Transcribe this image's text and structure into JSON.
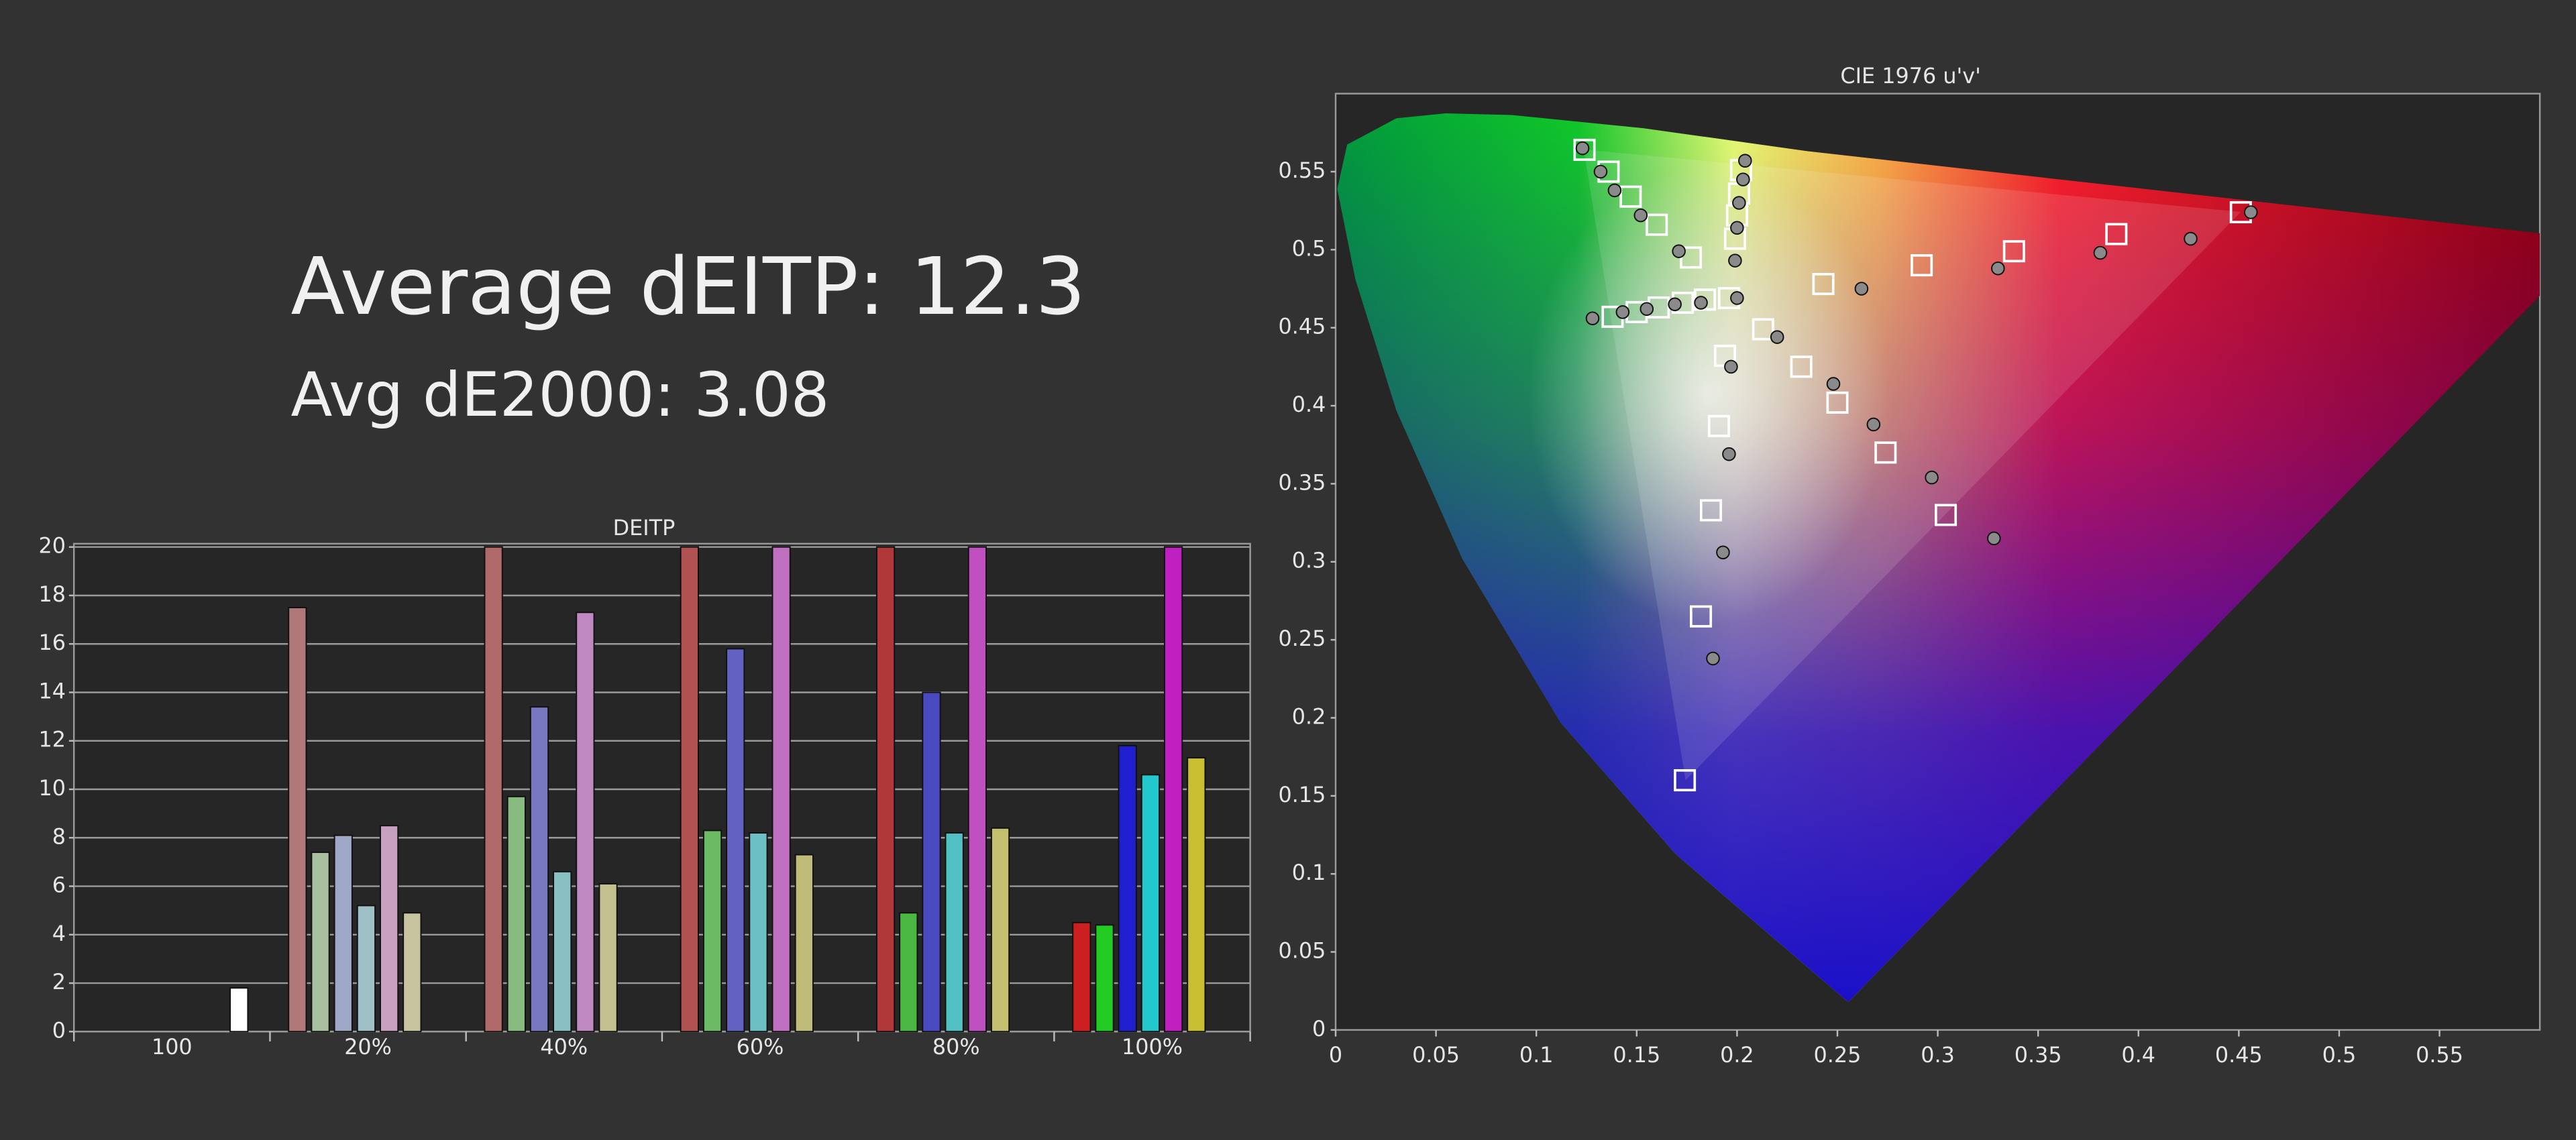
{
  "summary": {
    "average": "Average dEITP: 12.3",
    "avg_de2000": "Avg dE2000: 3.08"
  },
  "chart_data": [
    {
      "type": "bar",
      "title": "DEITP",
      "categories": [
        "100",
        "20%",
        "40%",
        "60%",
        "80%",
        "100%"
      ],
      "ylim": [
        0,
        20
      ],
      "yticks": [
        0,
        2,
        4,
        6,
        8,
        10,
        12,
        14,
        16,
        18,
        20
      ],
      "grid": true,
      "series": [
        {
          "colors": [
            null,
            "#b07878",
            "#b06a6a",
            "#b05252",
            "#b03838",
            "#cc1f1f"
          ],
          "values": [
            null,
            17.5,
            20,
            20,
            20,
            4.5
          ]
        },
        {
          "colors": [
            null,
            "#a8c0a0",
            "#88bb80",
            "#6cbb64",
            "#4cb844",
            "#22cc22"
          ],
          "values": [
            null,
            7.4,
            9.7,
            8.3,
            4.9,
            4.4
          ]
        },
        {
          "colors": [
            null,
            "#a0a8c8",
            "#7878c0",
            "#6262c0",
            "#4a4ac0",
            "#1f1fd0"
          ],
          "values": [
            null,
            8.1,
            13.4,
            15.8,
            14.0,
            11.8
          ]
        },
        {
          "colors": [
            null,
            "#a0c0c8",
            "#88c0c4",
            "#6cc0c4",
            "#50c0c4",
            "#22c8cc"
          ],
          "values": [
            null,
            5.2,
            6.6,
            8.2,
            8.2,
            10.6
          ]
        },
        {
          "colors": [
            null,
            "#c8a0c0",
            "#c088c0",
            "#c070c0",
            "#c050c0",
            "#c020c0"
          ],
          "values": [
            null,
            8.5,
            17.3,
            20,
            20,
            20
          ]
        },
        {
          "colors": [
            null,
            "#c8c4a0",
            "#c4c090",
            "#c0bc78",
            "#c4c070",
            "#c8c030"
          ],
          "values": [
            null,
            4.9,
            6.1,
            7.3,
            8.4,
            11.3
          ]
        },
        {
          "colors": [
            "#ffffff",
            null,
            null,
            null,
            null,
            null
          ],
          "values": [
            1.8,
            null,
            null,
            null,
            null,
            null
          ]
        }
      ]
    },
    {
      "type": "scatter",
      "title": "CIE 1976 u'v'",
      "xlim": [
        0,
        0.6
      ],
      "ylim": [
        0,
        0.6
      ],
      "xticks": [
        0,
        0.05,
        0.1,
        0.15,
        0.2,
        0.25,
        0.3,
        0.35,
        0.4,
        0.45,
        0.5,
        0.55
      ],
      "yticks": [
        0,
        0.05,
        0.1,
        0.15,
        0.2,
        0.25,
        0.3,
        0.35,
        0.4,
        0.45,
        0.5,
        0.55
      ],
      "series": [
        {
          "marker": "square",
          "color": "#ffffff",
          "x": [
            0.124,
            0.136,
            0.147,
            0.16,
            0.177,
            0.202,
            0.201,
            0.2,
            0.199,
            0.196,
            0.138,
            0.15,
            0.161,
            0.173,
            0.184,
            0.174,
            0.182,
            0.187,
            0.191,
            0.194,
            0.451,
            0.389,
            0.338,
            0.292,
            0.243,
            0.304,
            0.274,
            0.25,
            0.232,
            0.213
          ],
          "y": [
            0.564,
            0.55,
            0.534,
            0.516,
            0.495,
            0.551,
            0.536,
            0.522,
            0.507,
            0.469,
            0.457,
            0.46,
            0.463,
            0.466,
            0.468,
            0.16,
            0.265,
            0.333,
            0.387,
            0.432,
            0.524,
            0.51,
            0.499,
            0.49,
            0.478,
            0.33,
            0.37,
            0.402,
            0.425,
            0.449
          ]
        },
        {
          "marker": "circle",
          "color": "#8a8a8a",
          "x": [
            0.123,
            0.132,
            0.139,
            0.152,
            0.171,
            0.204,
            0.203,
            0.201,
            0.2,
            0.199,
            0.2,
            0.128,
            0.143,
            0.155,
            0.169,
            0.182,
            0.188,
            0.193,
            0.196,
            0.197,
            0.456,
            0.426,
            0.381,
            0.33,
            0.262,
            0.328,
            0.297,
            0.268,
            0.248,
            0.22
          ],
          "y": [
            0.565,
            0.55,
            0.538,
            0.522,
            0.499,
            0.557,
            0.545,
            0.53,
            0.514,
            0.493,
            0.469,
            0.456,
            0.46,
            0.462,
            0.465,
            0.466,
            0.238,
            0.306,
            0.369,
            0.425,
            0.524,
            0.507,
            0.498,
            0.488,
            0.475,
            0.315,
            0.354,
            0.388,
            0.414,
            0.444
          ]
        }
      ]
    }
  ]
}
